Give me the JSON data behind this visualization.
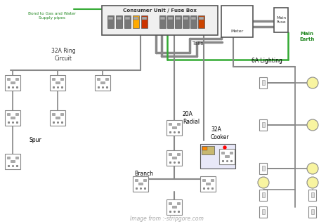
{
  "watermark": "Image from :-stripgore.com",
  "background_color": "#ffffff",
  "wire_color": "#888888",
  "earth_color": "#33aa33",
  "labels": {
    "consumer_unit": "Consumer Unit / Fuse Box",
    "bond": "Bond to Gas and Water\nSupply pipes",
    "tails": "Tails",
    "main_earth": "Main\nEarth",
    "meter": "Meter",
    "main_fuse": "Main\nFuse",
    "ring_circuit": "32A Ring\nCircuit",
    "radial": "20A\nRadial",
    "cooker": "32A\nCooker",
    "lighting": "6A Lighting",
    "spur": "Spur",
    "branch": "Branch"
  },
  "figsize": [
    4.74,
    3.19
  ],
  "dpi": 100
}
